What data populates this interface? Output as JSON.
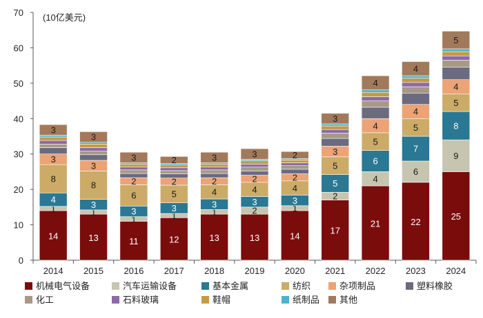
{
  "chart_data": {
    "type": "bar",
    "stacked": true,
    "unit_label": "(10亿美元)",
    "categories": [
      "2014",
      "2015",
      "2016",
      "2017",
      "2018",
      "2019",
      "2020",
      "2021",
      "2022",
      "2023",
      "2024"
    ],
    "ylim": [
      0,
      70
    ],
    "yticks": [
      "0",
      "10",
      "20",
      "30",
      "40",
      "50",
      "60",
      "70"
    ],
    "grid": false,
    "legend_position": "bottom",
    "series": [
      {
        "name": "机械电气设备",
        "color": "#7b0c0c",
        "values": [
          14,
          13,
          11,
          12,
          13,
          13,
          14,
          17,
          21,
          22,
          25
        ],
        "labels": [
          "14",
          "13",
          "11",
          "12",
          "13",
          "13",
          "14",
          "17",
          "21",
          "22",
          "25"
        ]
      },
      {
        "name": "汽车运输设备",
        "color": "#c6c6b0",
        "values": [
          1.2,
          1.2,
          1.3,
          1.2,
          1.3,
          2,
          1.4,
          2.2,
          4,
          6,
          9
        ],
        "labels": [
          "1",
          "1",
          "1",
          "1",
          "1",
          "2",
          "1",
          "2",
          "4",
          "6",
          "9"
        ]
      },
      {
        "name": "基本金属",
        "color": "#2a7893",
        "values": [
          3.8,
          3,
          3,
          3,
          3,
          3,
          3,
          5,
          6,
          7,
          8
        ],
        "labels": [
          "4",
          "3",
          "3",
          "3",
          "3",
          "3",
          "3",
          "5",
          "6",
          "7",
          "8"
        ]
      },
      {
        "name": "纺织",
        "color": "#cbab67",
        "values": [
          8,
          8,
          6,
          5,
          4,
          4,
          4,
          5,
          5,
          5,
          5
        ],
        "labels": [
          "8",
          "8",
          "6",
          "5",
          "4",
          "4",
          "4",
          "5",
          "5",
          "5",
          "5"
        ]
      },
      {
        "name": "杂项制品",
        "color": "#eca375",
        "values": [
          3,
          3,
          2,
          2,
          2,
          2,
          2,
          3,
          4,
          4,
          4
        ],
        "labels": [
          "3",
          "3",
          "2",
          "2",
          "2",
          "2",
          "2",
          "3",
          "4",
          "4",
          "4"
        ]
      },
      {
        "name": "塑料橡胶",
        "color": "#6b6b80",
        "values": [
          1.8,
          1.6,
          1.2,
          1.2,
          1.2,
          1.2,
          1.3,
          2.2,
          3.2,
          3.2,
          3.5
        ],
        "labels": []
      },
      {
        "name": "化工",
        "color": "#a69a86",
        "values": [
          1,
          1,
          1,
          0.9,
          1,
          1.1,
          1,
          1.5,
          1.8,
          1.8,
          2
        ],
        "labels": []
      },
      {
        "name": "石料玻璃",
        "color": "#8b6aa6",
        "values": [
          1,
          1,
          0.8,
          0.8,
          0.8,
          0.8,
          0.8,
          1,
          1.2,
          1.2,
          1.2
        ],
        "labels": []
      },
      {
        "name": "鞋帽",
        "color": "#c59a44",
        "values": [
          1,
          1,
          0.8,
          0.8,
          0.8,
          1,
          0.8,
          1,
          1.2,
          1.2,
          1.2
        ],
        "labels": []
      },
      {
        "name": "纸制品",
        "color": "#4bb3cd",
        "values": [
          0.5,
          0.5,
          0.4,
          0.4,
          0.4,
          0.4,
          0.4,
          0.6,
          0.7,
          0.7,
          0.8
        ],
        "labels": []
      },
      {
        "name": "其他",
        "color": "#a27a5b",
        "values": [
          3,
          3,
          3,
          2,
          3,
          3,
          2,
          3,
          4,
          4,
          5
        ],
        "labels": [
          "3",
          "3",
          "3",
          "2",
          "3",
          "3",
          "2",
          "3",
          "4",
          "4",
          "5"
        ]
      }
    ]
  }
}
